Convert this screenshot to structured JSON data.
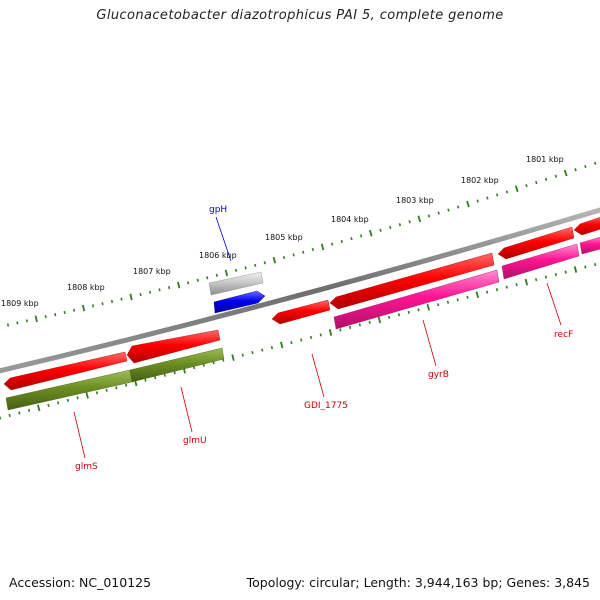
{
  "title": "Gluconacetobacter diazotrophicus PAI 5, complete genome",
  "footer": {
    "accession": "Accession: NC_010125",
    "summary": "Topology: circular; Length: 3,944,163 bp; Genes: 3,845"
  },
  "scale": {
    "tick_color": "#2e7d1e",
    "labels": [
      "1809 kbp",
      "1808 kbp",
      "1807 kbp",
      "1806 kbp",
      "1805 kbp",
      "1804 kbp",
      "1803 kbp",
      "1802 kbp",
      "1801 kbp"
    ]
  },
  "backbone_color": "#7a7a7a",
  "genes": [
    {
      "name": "glmS",
      "color": "#6b8e23",
      "label_color": "#cc0000"
    },
    {
      "name": "glmU",
      "color": "#6b8e23",
      "label_color": "#cc0000"
    },
    {
      "name": "gpH",
      "color": "#0000ee",
      "label_color": "#0000cc"
    },
    {
      "name": "GDI_1775",
      "color": "#ff1a1a",
      "label_color": "#cc0000"
    },
    {
      "name": "gyrB",
      "color": "#ff1493",
      "label_color": "#cc0000"
    },
    {
      "name": "recF",
      "color": "#ff1493",
      "label_color": "#cc0000"
    }
  ]
}
